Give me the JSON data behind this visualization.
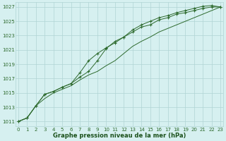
{
  "x_values": [
    0,
    1,
    2,
    3,
    4,
    5,
    6,
    7,
    8,
    9,
    10,
    11,
    12,
    13,
    14,
    15,
    16,
    17,
    18,
    19,
    20,
    21,
    22,
    23
  ],
  "series1": [
    1011.0,
    1011.5,
    1013.2,
    1014.8,
    1015.2,
    1015.8,
    1016.3,
    1017.2,
    1018.0,
    1019.5,
    1021.2,
    1022.2,
    1022.8,
    1023.5,
    1024.2,
    1024.5,
    1025.2,
    1025.5,
    1026.0,
    1026.2,
    1026.5,
    1026.8,
    1027.0,
    1027.0
  ],
  "series2": [
    1011.0,
    1011.5,
    1013.2,
    1014.8,
    1015.2,
    1015.8,
    1016.3,
    1017.8,
    1019.5,
    1020.5,
    1021.3,
    1022.0,
    1022.8,
    1023.8,
    1024.5,
    1025.0,
    1025.5,
    1025.8,
    1026.2,
    1026.5,
    1026.8,
    1027.1,
    1027.2,
    1027.0
  ],
  "series3": [
    1011.0,
    1011.5,
    1013.2,
    1014.2,
    1015.0,
    1015.5,
    1016.0,
    1016.8,
    1017.5,
    1018.0,
    1018.8,
    1019.5,
    1020.5,
    1021.5,
    1022.2,
    1022.8,
    1023.5,
    1024.0,
    1024.5,
    1025.0,
    1025.5,
    1026.0,
    1026.5,
    1027.0
  ],
  "line_color": "#2d6a2d",
  "marker": "+",
  "bg_color": "#d6f0f0",
  "grid_color": "#b0d4d4",
  "xlabel": "Graphe pression niveau de la mer (hPa)",
  "xlabel_color": "#1a501a",
  "ylabel_ticks": [
    1011,
    1013,
    1015,
    1017,
    1019,
    1021,
    1023,
    1025,
    1027
  ],
  "xlim": [
    -0.3,
    23.3
  ],
  "ylim": [
    1010.3,
    1027.7
  ],
  "figsize": [
    3.2,
    2.0
  ],
  "dpi": 100
}
